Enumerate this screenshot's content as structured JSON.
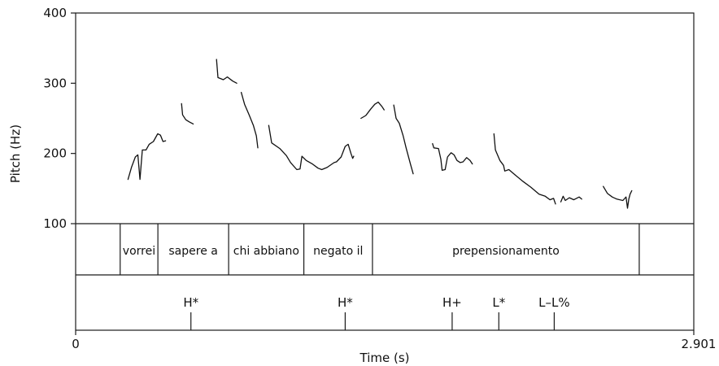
{
  "chart_data": {
    "type": "line",
    "xlabel": "Time (s)",
    "ylabel": "Pitch (Hz)",
    "xlim": [
      0,
      2.901
    ],
    "ylim": [
      100,
      400
    ],
    "x_tick_labels": [
      "0",
      "2.901"
    ],
    "y_ticks": [
      100,
      200,
      300,
      400
    ],
    "grid": false,
    "legend": "none",
    "series": [
      {
        "points": [
          [
            0.246,
            163
          ],
          [
            0.262,
            180
          ],
          [
            0.28,
            195
          ],
          [
            0.292,
            198
          ],
          [
            0.302,
            163
          ],
          [
            0.313,
            205
          ],
          [
            0.33,
            205
          ],
          [
            0.345,
            213
          ],
          [
            0.365,
            217
          ],
          [
            0.385,
            228
          ],
          [
            0.398,
            226
          ],
          [
            0.41,
            217
          ],
          [
            0.422,
            218
          ]
        ]
      },
      {
        "points": [
          [
            0.497,
            271
          ],
          [
            0.502,
            255
          ],
          [
            0.517,
            248
          ],
          [
            0.533,
            245
          ],
          [
            0.552,
            242
          ]
        ]
      },
      {
        "points": [
          [
            0.661,
            334
          ],
          [
            0.668,
            308
          ],
          [
            0.693,
            305
          ],
          [
            0.712,
            309
          ],
          [
            0.737,
            303
          ],
          [
            0.756,
            300
          ]
        ]
      },
      {
        "points": [
          [
            0.777,
            287
          ],
          [
            0.793,
            270
          ],
          [
            0.814,
            255
          ],
          [
            0.834,
            240
          ],
          [
            0.848,
            225
          ],
          [
            0.855,
            208
          ]
        ]
      },
      {
        "points": [
          [
            0.906,
            240
          ],
          [
            0.92,
            215
          ],
          [
            0.958,
            207
          ],
          [
            0.989,
            197
          ],
          [
            1.009,
            187
          ],
          [
            1.038,
            177
          ],
          [
            1.053,
            178
          ],
          [
            1.062,
            196
          ],
          [
            1.082,
            190
          ],
          [
            1.111,
            185
          ],
          [
            1.138,
            179
          ],
          [
            1.155,
            177
          ],
          [
            1.18,
            180
          ],
          [
            1.213,
            187
          ],
          [
            1.224,
            188
          ],
          [
            1.246,
            195
          ],
          [
            1.265,
            210
          ],
          [
            1.279,
            213
          ],
          [
            1.292,
            200
          ],
          [
            1.3,
            193
          ],
          [
            1.305,
            196
          ]
        ]
      },
      {
        "points": [
          [
            1.339,
            250
          ],
          [
            1.362,
            254
          ],
          [
            1.384,
            263
          ],
          [
            1.404,
            270
          ],
          [
            1.42,
            273
          ],
          [
            1.437,
            267
          ],
          [
            1.448,
            262
          ]
        ]
      },
      {
        "points": [
          [
            1.493,
            269
          ],
          [
            1.504,
            250
          ],
          [
            1.519,
            243
          ],
          [
            1.537,
            225
          ],
          [
            1.551,
            208
          ],
          [
            1.571,
            185
          ],
          [
            1.584,
            171
          ]
        ]
      },
      {
        "points": [
          [
            1.675,
            214
          ],
          [
            1.681,
            208
          ],
          [
            1.703,
            207
          ],
          [
            1.714,
            192
          ],
          [
            1.72,
            176
          ],
          [
            1.734,
            177
          ],
          [
            1.745,
            195
          ],
          [
            1.762,
            201
          ],
          [
            1.776,
            198
          ],
          [
            1.79,
            190
          ],
          [
            1.805,
            187
          ],
          [
            1.818,
            188
          ],
          [
            1.835,
            194
          ],
          [
            1.851,
            190
          ],
          [
            1.862,
            185
          ]
        ]
      },
      {
        "points": [
          [
            1.963,
            228
          ],
          [
            1.97,
            205
          ],
          [
            1.991,
            190
          ],
          [
            2.008,
            183
          ],
          [
            2.014,
            175
          ],
          [
            2.033,
            177
          ],
          [
            2.064,
            169
          ],
          [
            2.1,
            160
          ],
          [
            2.136,
            152
          ],
          [
            2.175,
            142
          ],
          [
            2.204,
            139
          ],
          [
            2.226,
            134
          ],
          [
            2.243,
            136
          ],
          [
            2.252,
            128
          ]
        ]
      },
      {
        "points": [
          [
            2.277,
            131
          ],
          [
            2.288,
            139
          ],
          [
            2.298,
            133
          ],
          [
            2.317,
            137
          ],
          [
            2.338,
            134
          ],
          [
            2.363,
            138
          ],
          [
            2.375,
            135
          ]
        ]
      },
      {
        "points": [
          [
            2.476,
            153
          ],
          [
            2.496,
            143
          ],
          [
            2.518,
            138
          ],
          [
            2.54,
            135
          ],
          [
            2.568,
            133
          ],
          [
            2.583,
            138
          ],
          [
            2.59,
            122
          ],
          [
            2.596,
            135
          ],
          [
            2.602,
            142
          ],
          [
            2.61,
            147
          ]
        ]
      }
    ]
  },
  "tiers": {
    "words": {
      "labels": [
        "vorrei",
        "sapere a",
        "chi abbiano",
        "negato il",
        "prepensionamento"
      ],
      "boundaries_s": [
        0.209,
        0.386,
        0.718,
        1.071,
        1.393,
        2.645
      ]
    },
    "tones": {
      "labels": [
        "H*",
        "H*",
        "H+",
        "L*",
        "L–L%"
      ],
      "times_s": [
        0.541,
        1.265,
        1.767,
        1.986,
        2.246
      ]
    }
  }
}
